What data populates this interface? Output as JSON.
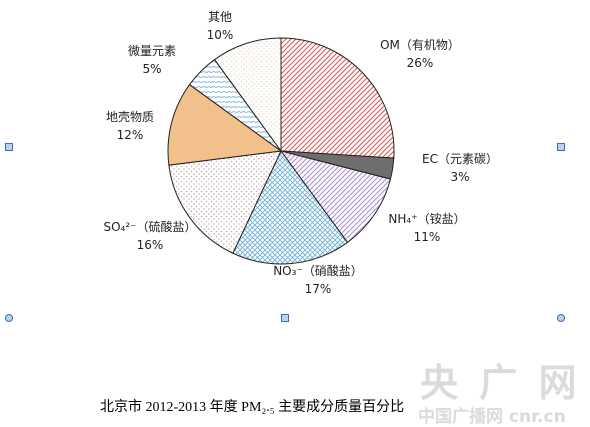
{
  "chart_data": {
    "type": "pie",
    "categories": [
      "OM（有机物）",
      "EC（元素碳）",
      "NH₄⁺（铵盐）",
      "NO₃⁻（硝酸盐）",
      "SO₄²⁻（硫酸盐）",
      "地壳物质",
      "微量元素",
      "其他"
    ],
    "values": [
      26,
      3,
      11,
      17,
      16,
      12,
      5,
      10
    ],
    "value_labels": [
      "26%",
      "3%",
      "11%",
      "17%",
      "16%",
      "12%",
      "5%",
      "10%"
    ],
    "colors": [
      "#d9534f",
      "#6e6e6e",
      "#a98bd0",
      "#6aaed6",
      "#c9a9a9",
      "#f2c08a",
      "#7fb4e0",
      "#e8dcc8"
    ]
  },
  "caption": "北京市 2012-2013 年度 PM₂.₅ 主要成分质量百分比",
  "watermark": {
    "logo": "央 广 网",
    "site": "中国广播网 cnr.cn"
  }
}
